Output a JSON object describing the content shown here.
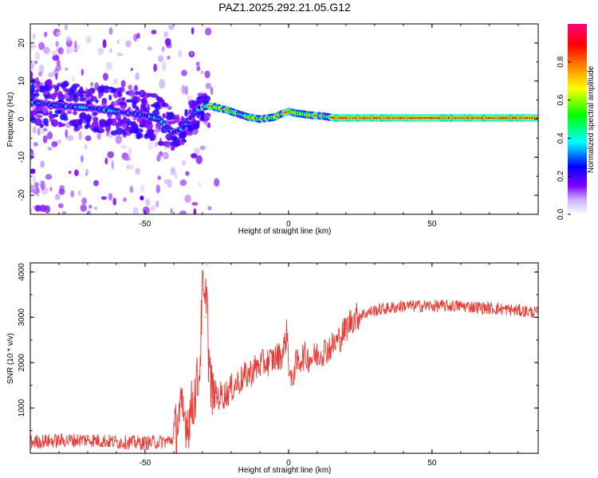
{
  "chart_data": [
    {
      "type": "heatmap",
      "title": "PAZ1.2025.292.21.05.G12",
      "xlabel": "Height of straight line (km)",
      "ylabel": "Frequency (Hz)",
      "xlim": [
        -90,
        87
      ],
      "ylim": [
        -25,
        25
      ],
      "xticks": [
        -50,
        0,
        50
      ],
      "yticks": [
        -20,
        -10,
        0,
        10,
        20
      ],
      "colorbar": {
        "label": "Normalized spectral amplitude",
        "range": [
          0,
          1
        ],
        "ticks": [
          0.0,
          0.2,
          0.4,
          0.6,
          0.8
        ],
        "tick_labels": [
          "0.0",
          "0.2",
          "0.4",
          "0.6",
          "0.8"
        ],
        "colors": [
          "#ffffff",
          "#8000ff",
          "#0000ff",
          "#00ffff",
          "#00ff00",
          "#ffff00",
          "#ff8000",
          "#ff0000",
          "#ff0080"
        ]
      },
      "ridge": {
        "x": [
          -90,
          -80,
          -70,
          -60,
          -50,
          -45,
          -42,
          -40,
          -37,
          -34,
          -31,
          -28,
          -25,
          -22,
          -18,
          -14,
          -10,
          -5,
          -2,
          0,
          3,
          8,
          12,
          16,
          87
        ],
        "freq": [
          4.5,
          3.5,
          3.0,
          2.0,
          1.0,
          0.0,
          -2.5,
          -3.5,
          -2.5,
          0.5,
          3.0,
          3.5,
          3.0,
          2.5,
          1.5,
          0.5,
          0.0,
          0.5,
          1.5,
          2.0,
          1.5,
          1.0,
          0.8,
          0.3,
          0.3
        ]
      }
    },
    {
      "type": "line",
      "xlabel": "Height of straight line (km)",
      "ylabel": "SNR (10 * v/v)",
      "xlim": [
        -90,
        87
      ],
      "ylim": [
        0,
        4200
      ],
      "xticks": [
        -50,
        0,
        50
      ],
      "yticks": [
        1000,
        2000,
        3000,
        4000
      ],
      "color": "#e8302a",
      "series": [
        {
          "name": "SNR",
          "x": [
            -90,
            -80,
            -70,
            -60,
            -50,
            -45,
            -42,
            -40,
            -38,
            -35,
            -33,
            -31,
            -30,
            -29,
            -28.5,
            -28,
            -27,
            -25,
            -22,
            -18,
            -14,
            -10,
            -6,
            -2,
            -0.5,
            0,
            1,
            2,
            5,
            8,
            12,
            15,
            18,
            20,
            22,
            25,
            30,
            40,
            50,
            60,
            70,
            80,
            87
          ],
          "values": [
            250,
            280,
            300,
            250,
            230,
            250,
            270,
            330,
            900,
            700,
            1200,
            1800,
            3600,
            3000,
            4150,
            2300,
            1400,
            1250,
            1300,
            1550,
            1750,
            1950,
            2050,
            2200,
            2700,
            2050,
            1500,
            1900,
            2150,
            2100,
            2250,
            2350,
            2550,
            2750,
            2950,
            3050,
            3150,
            3250,
            3250,
            3250,
            3200,
            3150,
            3100
          ]
        }
      ]
    }
  ]
}
